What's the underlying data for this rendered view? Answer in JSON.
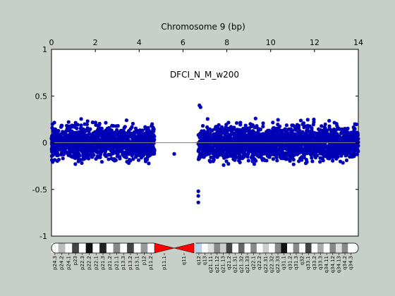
{
  "chart_data": {
    "type": "scatter",
    "title": "Chromosome 9 (bp)",
    "annotation": "DFCI_N_M_w200",
    "x_top_ticks": [
      "0",
      "2",
      "4",
      "6",
      "8",
      "10",
      "12",
      "14"
    ],
    "xlim": [
      0,
      14
    ],
    "y_ticks": [
      "1",
      "0.5",
      "0",
      "-0.5",
      "-1"
    ],
    "ylim": [
      -1,
      1
    ],
    "point_color": "#0000b4",
    "reference_line_y": 0,
    "grid": false,
    "clusters": [
      {
        "name": "p-arm",
        "x_range": [
          0,
          4.7
        ],
        "y_typical": [
          -0.3,
          0.3
        ]
      },
      {
        "name": "q-arm",
        "x_range": [
          6.7,
          14
        ],
        "y_typical": [
          -0.3,
          0.35
        ]
      }
    ],
    "outliers": [
      {
        "x": 5.6,
        "y": -0.12
      },
      {
        "x": 6.7,
        "y": -0.52
      },
      {
        "x": 6.7,
        "y": -0.57
      },
      {
        "x": 6.7,
        "y": -0.64
      },
      {
        "x": 6.75,
        "y": 0.4
      },
      {
        "x": 6.8,
        "y": 0.38
      }
    ],
    "ideogram": {
      "bands": [
        "p24.3",
        "p24.2",
        "p24.1",
        "p23",
        "p22.3",
        "p22.2",
        "p22.1",
        "p21.3",
        "p21.2",
        "p21.1",
        "p13.3",
        "p13.2",
        "p13.1",
        "p12",
        "p11.2",
        "p11.1",
        "q11",
        "q12",
        "q13",
        "q21.11",
        "q21.12",
        "q21.13",
        "q21.2",
        "q21.31",
        "q21.32",
        "q21.33",
        "q22.1",
        "q22.2",
        "q22.31",
        "q22.32",
        "q22.33",
        "q31.1",
        "q31.2",
        "q31.3",
        "q32",
        "q33.1",
        "q33.2",
        "q33.3",
        "q34.11",
        "q34.12",
        "q34.13",
        "q34.2",
        "q34.3"
      ]
    }
  }
}
